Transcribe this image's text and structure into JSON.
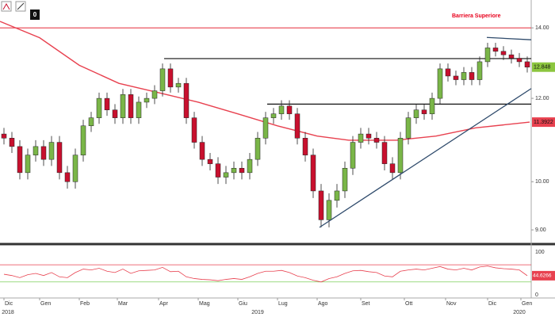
{
  "chart_data": {
    "type": "candlestick",
    "badge": "0",
    "annotation": "Barriera Superiore",
    "log_scale": true,
    "xlim": [
      -0.5,
      66.5
    ],
    "ylim": [
      8.77,
      14.88
    ],
    "yticks": [
      {
        "value": 9,
        "label": "9.00"
      },
      {
        "value": 10,
        "label": "10.00"
      },
      {
        "value": 12,
        "label": "12.00"
      },
      {
        "value": 14,
        "label": "14.00"
      }
    ],
    "up_color": "#7ab648",
    "down_color": "#c8102e",
    "open": [
      11.1,
      11.0,
      10.8,
      10.2,
      10.6,
      10.8,
      10.5,
      10.9,
      10.2,
      10.0,
      10.6,
      11.3,
      11.5,
      12.0,
      11.7,
      11.5,
      12.1,
      11.5,
      11.9,
      12.0,
      12.2,
      12.8,
      12.3,
      12.4,
      11.5,
      10.9,
      10.5,
      10.4,
      10.1,
      10.2,
      10.3,
      10.2,
      10.5,
      11.0,
      11.5,
      11.6,
      11.8,
      11.6,
      11.0,
      10.6,
      9.8,
      9.2,
      9.6,
      9.8,
      10.3,
      10.9,
      11.1,
      11.0,
      10.9,
      10.4,
      10.2,
      11.0,
      11.5,
      11.7,
      11.6,
      12.0,
      12.8,
      12.6,
      12.5,
      12.7,
      12.5,
      13.0,
      13.4,
      13.3,
      13.2,
      13.1,
      13.0
    ],
    "high": [
      11.25,
      11.15,
      10.95,
      10.75,
      10.95,
      10.95,
      11.05,
      11.05,
      10.35,
      10.75,
      11.45,
      11.65,
      12.15,
      12.15,
      11.85,
      12.25,
      12.25,
      12.05,
      12.15,
      12.35,
      12.95,
      12.95,
      12.55,
      12.55,
      11.65,
      11.05,
      10.65,
      10.55,
      10.35,
      10.45,
      10.45,
      10.65,
      11.15,
      11.65,
      11.75,
      11.95,
      11.95,
      11.75,
      11.15,
      10.75,
      9.95,
      9.75,
      9.95,
      10.45,
      11.05,
      11.25,
      11.25,
      11.15,
      11.05,
      10.55,
      11.15,
      11.65,
      11.85,
      11.85,
      12.15,
      12.95,
      12.95,
      12.75,
      12.85,
      12.85,
      13.15,
      13.55,
      13.55,
      13.45,
      13.35,
      13.25,
      13.15
    ],
    "low": [
      10.85,
      10.65,
      10.05,
      10.05,
      10.45,
      10.35,
      10.35,
      10.05,
      9.85,
      9.85,
      10.45,
      11.15,
      11.35,
      11.55,
      11.35,
      11.35,
      11.35,
      11.35,
      11.75,
      11.85,
      12.05,
      12.15,
      12.15,
      11.35,
      10.75,
      10.35,
      10.25,
      9.95,
      9.95,
      10.05,
      10.05,
      10.05,
      10.35,
      10.85,
      11.35,
      11.45,
      11.45,
      10.85,
      10.45,
      9.65,
      9.05,
      9.05,
      9.45,
      9.65,
      10.15,
      10.75,
      10.85,
      10.75,
      10.25,
      10.05,
      10.05,
      10.85,
      11.35,
      11.45,
      11.45,
      11.85,
      12.45,
      12.35,
      12.35,
      12.35,
      12.35,
      12.85,
      13.15,
      13.05,
      12.95,
      12.85,
      12.698
    ],
    "close": [
      11.0,
      10.8,
      10.2,
      10.6,
      10.8,
      10.5,
      10.9,
      10.2,
      10.0,
      10.6,
      11.3,
      11.5,
      12.0,
      11.7,
      11.5,
      12.1,
      11.5,
      11.9,
      12.0,
      12.2,
      12.8,
      12.3,
      12.4,
      11.5,
      10.9,
      10.5,
      10.4,
      10.1,
      10.2,
      10.3,
      10.2,
      10.5,
      11.0,
      11.5,
      11.6,
      11.8,
      11.6,
      11.0,
      10.6,
      9.8,
      9.2,
      9.6,
      9.8,
      10.3,
      10.9,
      11.1,
      11.0,
      10.9,
      10.4,
      10.2,
      11.0,
      11.5,
      11.7,
      11.6,
      12.0,
      12.8,
      12.6,
      12.5,
      12.7,
      12.5,
      13.0,
      13.4,
      13.3,
      13.2,
      13.1,
      13.0,
      12.848
    ],
    "close_label_color": "#8cc63f",
    "ma": {
      "color": "#e8414f",
      "x": [
        -0.5,
        4.5,
        9.5,
        14.5,
        19.5,
        24.5,
        29.5,
        34.5,
        39.5,
        43.5,
        49.5,
        54.5,
        59.5,
        66.3
      ],
      "values": [
        14.2,
        13.7,
        12.9,
        12.4,
        12.15,
        11.9,
        11.6,
        11.3,
        11.05,
        10.95,
        10.95,
        11.05,
        11.25,
        11.3922
      ]
    },
    "levels": [
      {
        "value": 14,
        "from": -0.5,
        "color": "#e8414f"
      },
      {
        "value": 13.09,
        "from": 20.2,
        "color": "#111111"
      },
      {
        "value": 11.85,
        "from": 33.2,
        "color": "#111111"
      }
    ],
    "trendlines": [
      {
        "x": [
          39.8,
          66.5
        ],
        "values": [
          9.05,
          12.26
        ],
        "color": "#2e4a6b"
      },
      {
        "x": [
          60.9,
          66.5
        ],
        "values": [
          13.71,
          13.64
        ],
        "color": "#2e4a6b"
      }
    ],
    "rsi": {
      "color": "#e8414f",
      "label_color": "#e8414f",
      "ylim": [
        -7.4,
        111
      ],
      "yticks": [
        100,
        0
      ],
      "levels": [
        {
          "value": 70,
          "color": "#e8414f"
        },
        {
          "value": 30,
          "color": "#7ccf5a"
        }
      ],
      "values": [
        48,
        45,
        40,
        47,
        50,
        45,
        52,
        42,
        40,
        52,
        60,
        58,
        62,
        55,
        52,
        60,
        50,
        56,
        57,
        58,
        64,
        54,
        55,
        42,
        38,
        36,
        35,
        33,
        36,
        38,
        36,
        42,
        50,
        55,
        55,
        57,
        52,
        44,
        40,
        34,
        30,
        38,
        42,
        50,
        56,
        57,
        54,
        52,
        44,
        42,
        55,
        58,
        60,
        58,
        62,
        66,
        60,
        58,
        62,
        58,
        65,
        67,
        63,
        61,
        60,
        58,
        44.6266
      ]
    },
    "month_ticks": [
      {
        "value": 0,
        "label": "Dic"
      },
      {
        "value": 4.5,
        "label": "Gen"
      },
      {
        "value": 9.5,
        "label": "Feb"
      },
      {
        "value": 14.3,
        "label": "Mar"
      },
      {
        "value": 19.5,
        "label": "Apr"
      },
      {
        "value": 24.5,
        "label": "Mag"
      },
      {
        "value": 29.5,
        "label": "Giu"
      },
      {
        "value": 34.5,
        "label": "Lug"
      },
      {
        "value": 39.5,
        "label": "Ago"
      },
      {
        "value": 45,
        "label": "Set"
      },
      {
        "value": 50.5,
        "label": "Ott"
      },
      {
        "value": 55.7,
        "label": "Nov"
      },
      {
        "value": 61,
        "label": "Dic"
      },
      {
        "value": 65.2,
        "label": "Gen"
      }
    ],
    "year_ticks": [
      {
        "value": 0.5,
        "label": "2018"
      },
      {
        "value": 32,
        "label": "2019"
      },
      {
        "value": 65,
        "label": "2020"
      }
    ]
  }
}
